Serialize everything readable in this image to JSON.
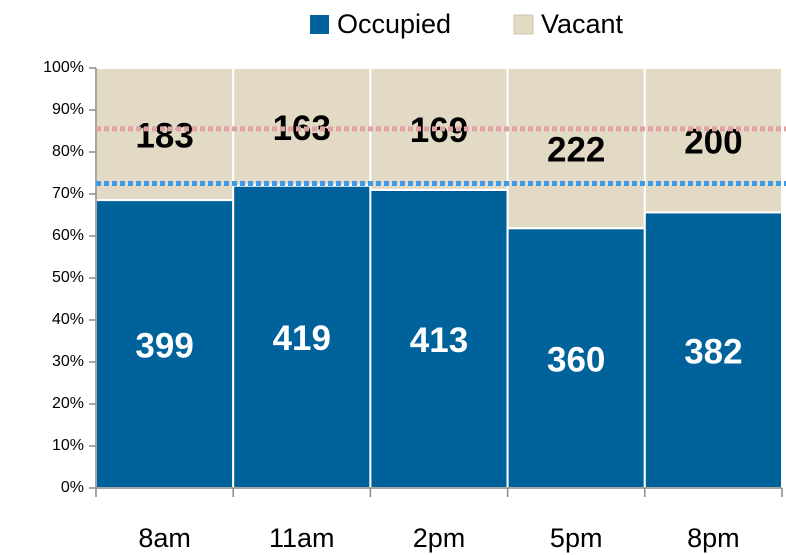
{
  "chart_data": {
    "type": "bar",
    "stacking": "percent",
    "categories": [
      "8am",
      "11am",
      "2pm",
      "5pm",
      "8pm"
    ],
    "series": [
      {
        "name": "Occupied",
        "color": "#00629b",
        "label_color": "#ffffff",
        "values": [
          399,
          419,
          413,
          360,
          382
        ]
      },
      {
        "name": "Vacant",
        "color": "#e3dac6",
        "label_color": "#000000",
        "values": [
          183,
          163,
          169,
          222,
          200
        ]
      }
    ],
    "ylim": [
      0,
      100
    ],
    "yticks": [
      {
        "value": 0,
        "label": "0%"
      },
      {
        "value": 10,
        "label": "10%"
      },
      {
        "value": 20,
        "label": "20%"
      },
      {
        "value": 30,
        "label": "30%"
      },
      {
        "value": 40,
        "label": "40%"
      },
      {
        "value": 50,
        "label": "50%"
      },
      {
        "value": 60,
        "label": "60%"
      },
      {
        "value": 70,
        "label": "70%"
      },
      {
        "value": 80,
        "label": "80%"
      },
      {
        "value": 90,
        "label": "90%"
      },
      {
        "value": 100,
        "label": "100%"
      }
    ],
    "reference_lines": [
      {
        "value": 85.5,
        "color": "#e0a2a2"
      },
      {
        "value": 72.5,
        "color": "#3d9be9"
      }
    ],
    "legend": "top"
  }
}
